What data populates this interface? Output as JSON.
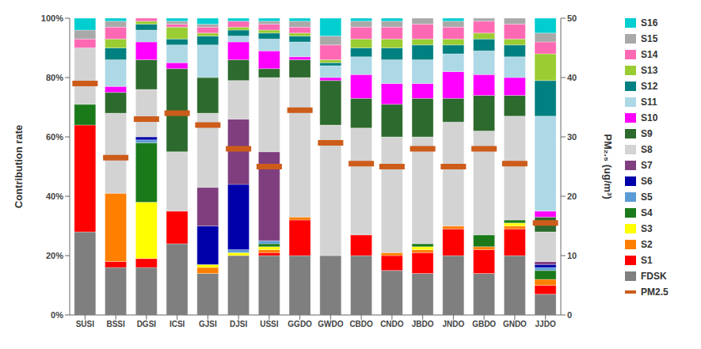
{
  "chart_data": {
    "type": "bar",
    "stacked": true,
    "categories": [
      "SUSI",
      "BSSI",
      "DGSI",
      "ICSI",
      "GJSI",
      "DJSI",
      "USSI",
      "GGDO",
      "GWDO",
      "CBDO",
      "CNDO",
      "JBDO",
      "JNDO",
      "GBDO",
      "GNDO",
      "JJDO"
    ],
    "series": [
      {
        "name": "FDSK",
        "color": "#7f7f7f",
        "values": [
          0.28,
          0.16,
          0.16,
          0.24,
          0.14,
          0.2,
          0.2,
          0.2,
          0.2,
          0.2,
          0.15,
          0.14,
          0.2,
          0.14,
          0.2,
          0.07
        ]
      },
      {
        "name": "S1",
        "color": "#ff0000",
        "values": [
          0.36,
          0.02,
          0.03,
          0.11,
          0.0,
          0.0,
          0.01,
          0.12,
          0.0,
          0.07,
          0.05,
          0.07,
          0.09,
          0.08,
          0.09,
          0.03
        ]
      },
      {
        "name": "S2",
        "color": "#ff7f00",
        "values": [
          0.0,
          0.23,
          0.0,
          0.0,
          0.02,
          0.0,
          0.01,
          0.01,
          0.0,
          0.0,
          0.01,
          0.01,
          0.01,
          0.01,
          0.01,
          0.02
        ]
      },
      {
        "name": "S3",
        "color": "#ffff00",
        "values": [
          0.0,
          0.0,
          0.19,
          0.0,
          0.01,
          0.01,
          0.01,
          0.0,
          0.0,
          0.0,
          0.0,
          0.01,
          0.0,
          0.0,
          0.01,
          0.0
        ]
      },
      {
        "name": "S4",
        "color": "#1a7a1a",
        "values": [
          0.07,
          0.0,
          0.2,
          0.0,
          0.0,
          0.0,
          0.01,
          0.0,
          0.0,
          0.0,
          0.0,
          0.01,
          0.0,
          0.04,
          0.01,
          0.03
        ]
      },
      {
        "name": "S5",
        "color": "#5b9bd5",
        "values": [
          0.0,
          0.0,
          0.01,
          0.0,
          0.0,
          0.01,
          0.01,
          0.0,
          0.0,
          0.0,
          0.0,
          0.0,
          0.0,
          0.0,
          0.0,
          0.01
        ]
      },
      {
        "name": "S6",
        "color": "#0000aa",
        "values": [
          0.0,
          0.0,
          0.01,
          0.0,
          0.13,
          0.22,
          0.0,
          0.0,
          0.0,
          0.0,
          0.0,
          0.0,
          0.0,
          0.0,
          0.0,
          0.01
        ]
      },
      {
        "name": "S7",
        "color": "#7f3f7f",
        "values": [
          0.0,
          0.0,
          0.0,
          0.0,
          0.13,
          0.22,
          0.3,
          0.0,
          0.0,
          0.0,
          0.0,
          0.0,
          0.0,
          0.0,
          0.0,
          0.01
        ]
      },
      {
        "name": "S8",
        "color": "#d3d3d3",
        "values": [
          0.19,
          0.27,
          0.16,
          0.2,
          0.25,
          0.13,
          0.25,
          0.47,
          0.44,
          0.36,
          0.39,
          0.36,
          0.35,
          0.35,
          0.35,
          0.1
        ]
      },
      {
        "name": "S9",
        "color": "#2d6a2d",
        "values": [
          0.0,
          0.07,
          0.1,
          0.28,
          0.12,
          0.07,
          0.03,
          0.06,
          0.15,
          0.1,
          0.11,
          0.13,
          0.08,
          0.12,
          0.07,
          0.05
        ]
      },
      {
        "name": "S10",
        "color": "#ff00ff",
        "values": [
          0.0,
          0.02,
          0.06,
          0.02,
          0.0,
          0.06,
          0.06,
          0.01,
          0.01,
          0.08,
          0.07,
          0.05,
          0.09,
          0.07,
          0.06,
          0.02
        ]
      },
      {
        "name": "S11",
        "color": "#add8e6",
        "values": [
          0.0,
          0.09,
          0.04,
          0.06,
          0.11,
          0.02,
          0.04,
          0.05,
          0.04,
          0.06,
          0.08,
          0.08,
          0.06,
          0.08,
          0.07,
          0.32
        ]
      },
      {
        "name": "S12",
        "color": "#008080",
        "values": [
          0.0,
          0.04,
          0.02,
          0.02,
          0.03,
          0.02,
          0.02,
          0.02,
          0.01,
          0.03,
          0.04,
          0.05,
          0.03,
          0.04,
          0.04,
          0.12
        ]
      },
      {
        "name": "S13",
        "color": "#9acd32",
        "values": [
          0.0,
          0.03,
          0.01,
          0.04,
          0.01,
          0.01,
          0.01,
          0.01,
          0.01,
          0.03,
          0.03,
          0.02,
          0.02,
          0.02,
          0.02,
          0.09
        ]
      },
      {
        "name": "S14",
        "color": "#ff69b4",
        "values": [
          0.03,
          0.04,
          0.01,
          0.01,
          0.02,
          0.02,
          0.02,
          0.02,
          0.05,
          0.04,
          0.04,
          0.05,
          0.04,
          0.04,
          0.05,
          0.04
        ]
      },
      {
        "name": "S15",
        "color": "#a9a9a9",
        "values": [
          0.03,
          0.02,
          0.0,
          0.01,
          0.01,
          0.0,
          0.01,
          0.02,
          0.03,
          0.02,
          0.02,
          0.02,
          0.02,
          0.01,
          0.02,
          0.03
        ]
      },
      {
        "name": "S16",
        "color": "#00ced1",
        "values": [
          0.04,
          0.01,
          0.0,
          0.01,
          0.02,
          0.01,
          0.01,
          0.01,
          0.06,
          0.01,
          0.01,
          0.0,
          0.01,
          0.0,
          0.0,
          0.05
        ]
      },
      {
        "name": "PM2.5",
        "type": "scatter",
        "marker": "dash",
        "axis": "y2",
        "color": "#cd5c1a",
        "values": [
          39.0,
          26.5,
          33.0,
          34.0,
          32.0,
          28.0,
          25.0,
          34.5,
          29.0,
          25.5,
          25.0,
          28.0,
          25.0,
          28.0,
          25.5,
          15.5
        ]
      }
    ],
    "ylabel": "Contribution rate",
    "y2label": "PM₂.₅ (ug/m³)",
    "ylim": [
      0,
      1.0
    ],
    "yticks": [
      {
        "value": 0.0,
        "label": "0%"
      },
      {
        "value": 0.2,
        "label": "20%"
      },
      {
        "value": 0.4,
        "label": "40%"
      },
      {
        "value": 0.6,
        "label": "60%"
      },
      {
        "value": 0.8,
        "label": "80%"
      },
      {
        "value": 1.0,
        "label": "100%"
      }
    ],
    "y2lim": [
      0,
      50
    ],
    "y2ticks": [
      0,
      10,
      20,
      30,
      40,
      50
    ],
    "grid": false,
    "legend": "right"
  }
}
